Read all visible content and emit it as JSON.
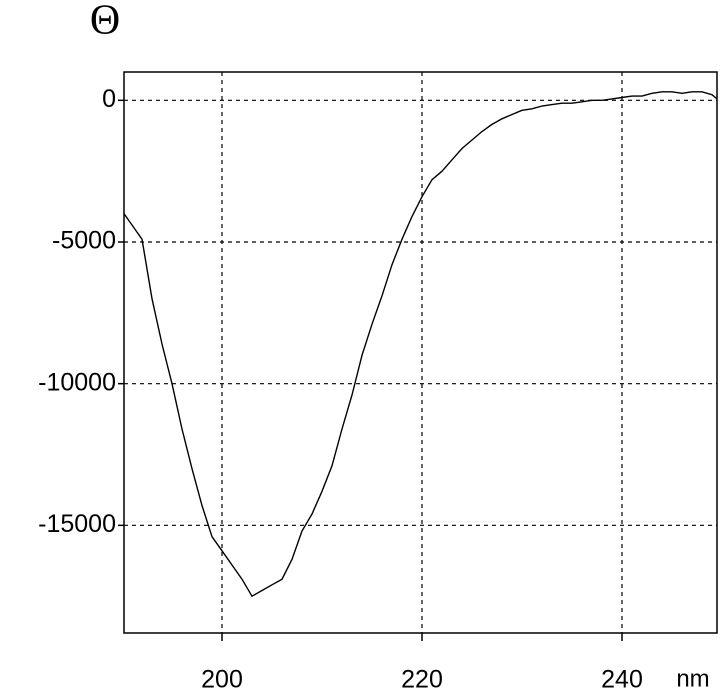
{
  "chart_data": {
    "type": "line",
    "y_label": "Θ",
    "x_label": "nm",
    "x": [
      190.2,
      191,
      192,
      193,
      194,
      195,
      196,
      197,
      198,
      199,
      200,
      201,
      202,
      203,
      204,
      205,
      206,
      207,
      208,
      209,
      210,
      211,
      212,
      213,
      214,
      215,
      216,
      217,
      218,
      219,
      220,
      221,
      222,
      223,
      224,
      225,
      226,
      227,
      228,
      229,
      230,
      231,
      232,
      233,
      234,
      235,
      236,
      237,
      238,
      239,
      240,
      241,
      242,
      243,
      244,
      245,
      246,
      247,
      248,
      249,
      249.5
    ],
    "values": [
      -4000,
      -4400,
      -4900,
      -7000,
      -8600,
      -10000,
      -11600,
      -13000,
      -14300,
      -15400,
      -15900,
      -16400,
      -16900,
      -17500,
      -17300,
      -17100,
      -16900,
      -16200,
      -15200,
      -14600,
      -13800,
      -12900,
      -11600,
      -10400,
      -9000,
      -7900,
      -6900,
      -5800,
      -4900,
      -4100,
      -3400,
      -2800,
      -2500,
      -2100,
      -1700,
      -1400,
      -1100,
      -850,
      -650,
      -500,
      -350,
      -300,
      -200,
      -150,
      -100,
      -100,
      -50,
      0,
      0,
      50,
      100,
      150,
      150,
      250,
      300,
      300,
      250,
      300,
      300,
      200,
      50
    ],
    "color": "#000000",
    "xlim": [
      190.2,
      249.5
    ],
    "ylim": [
      -18800,
      1000
    ],
    "xticks": [
      200,
      220,
      240
    ],
    "yticks": [
      0,
      -5000,
      -10000,
      -15000
    ],
    "grid": true
  }
}
